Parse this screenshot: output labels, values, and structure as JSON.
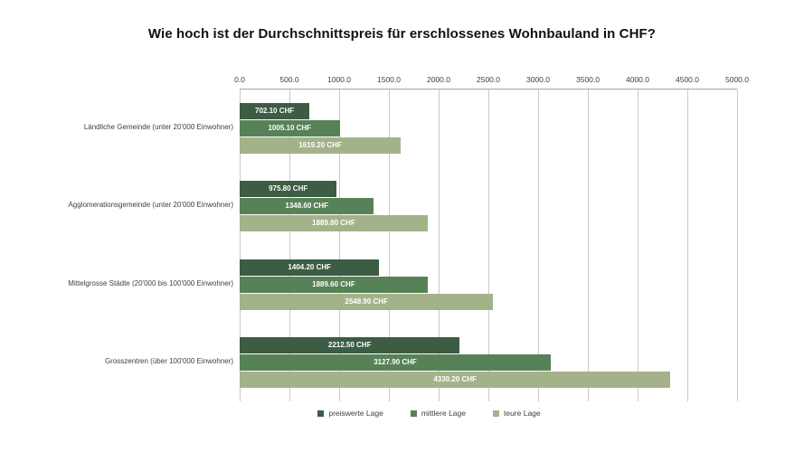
{
  "chart_data": {
    "type": "bar",
    "orientation": "horizontal",
    "title": "Wie hoch ist der Durchschnittspreis für erschlossenes Wohnbauland in CHF?",
    "categories": [
      "Ländliche Gemeinde (unter 20'000 Einwohner)",
      "Agglomerationsgemeinde (unter 20'000 Einwohner)",
      "Mittelgrosse Städte (20'000 bis 100'000 Einwohner)",
      "Grosszentren (über 100'000 Einwohner)"
    ],
    "series": [
      {
        "name": "preiswerte Lage",
        "color": "#3c5c44",
        "values": [
          702.1,
          975.8,
          1404.2,
          2212.5
        ]
      },
      {
        "name": "mittlere Lage",
        "color": "#578257",
        "values": [
          1005.1,
          1348.6,
          1889.6,
          3127.9
        ]
      },
      {
        "name": "teure Lage",
        "color": "#a4b289",
        "values": [
          1619.2,
          1889.8,
          2548.9,
          4330.2
        ]
      }
    ],
    "value_label_suffix": " CHF",
    "value_label_decimals": 2,
    "xlim": [
      0,
      5000
    ],
    "xticks": [
      0,
      500,
      1000,
      1500,
      2000,
      2500,
      3000,
      3500,
      4000,
      4500,
      5000
    ],
    "xtick_decimals": 1,
    "grid": true,
    "axis_side": "top",
    "legend_position": "bottom",
    "colors": {
      "grid": "#c9c9c9",
      "axis": "#a6a6a6",
      "tick_text": "#404040",
      "category_text": "#404040",
      "value_text": "#ffffff",
      "legend_text": "#404040",
      "title_text": "#111111",
      "background": "#ffffff"
    }
  }
}
